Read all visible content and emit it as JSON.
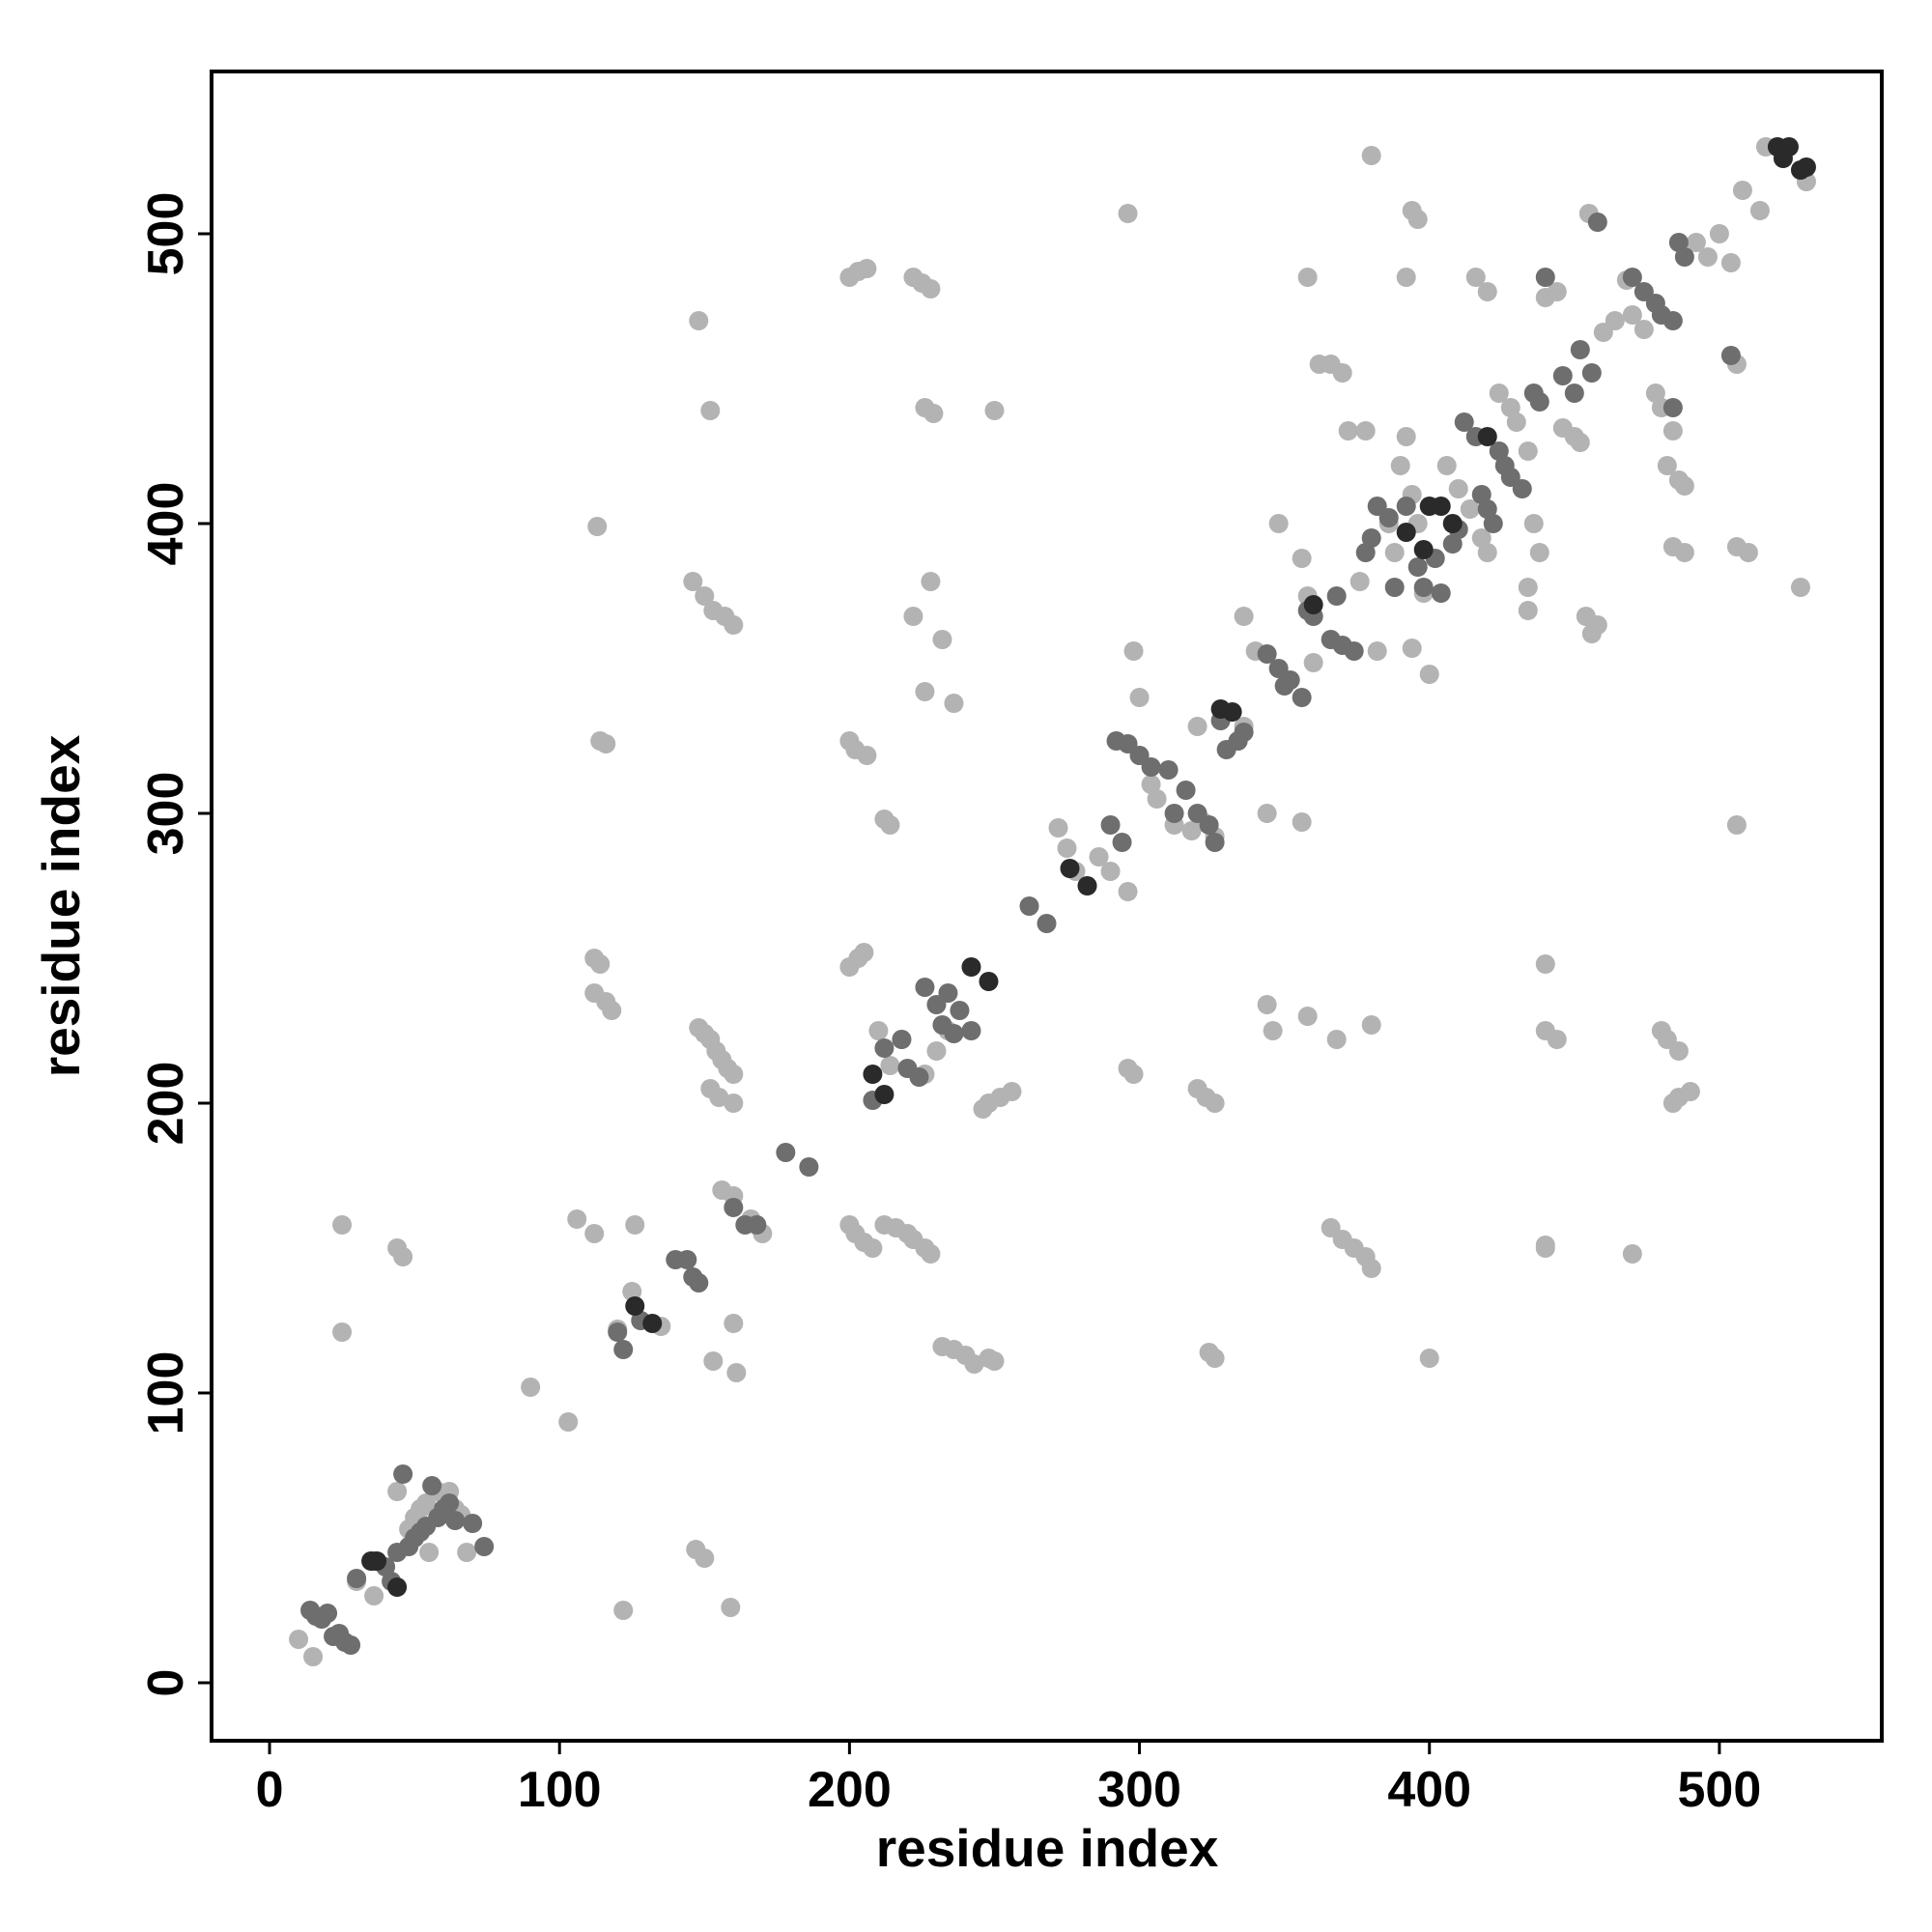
{
  "chart_data": {
    "type": "scatter",
    "xlabel": "residue index",
    "ylabel": "residue index",
    "xlim": [
      -20,
      556
    ],
    "ylim": [
      -20,
      556
    ],
    "xticks": [
      0,
      100,
      200,
      300,
      400,
      500
    ],
    "yticks": [
      0,
      100,
      200,
      300,
      400,
      500
    ],
    "series": [
      {
        "color": "#b3b3b3",
        "x": [
          10,
          15,
          25,
          25,
          44,
          46,
          44,
          30,
          36,
          55,
          68,
          62,
          58,
          64,
          66,
          48,
          50,
          52,
          54,
          90,
          103,
          106,
          112,
          122,
          126,
          125,
          135,
          147,
          150,
          159,
          160,
          153,
          161,
          148,
          152,
          113,
          114,
          116,
          112,
          114,
          112,
          116,
          118,
          146,
          150,
          153,
          157,
          160,
          148,
          150,
          152,
          154,
          156,
          158,
          160,
          152,
          155,
          160,
          156,
          160,
          170,
          166,
          200,
          202,
          205,
          208,
          212,
          216,
          220,
          222,
          226,
          228,
          200,
          203,
          206,
          222,
          225,
          228,
          226,
          229,
          228,
          222,
          232,
          226,
          236,
          250,
          200,
          202,
          206,
          212,
          214,
          200,
          203,
          205,
          210,
          214,
          218,
          226,
          230,
          234,
          232,
          236,
          240,
          243,
          248,
          250,
          248,
          252,
          256,
          246,
          120,
          272,
          275,
          278,
          282,
          286,
          290,
          296,
          298,
          296,
          300,
          304,
          306,
          312,
          318,
          322,
          326,
          298,
          300,
          296,
          320,
          323,
          326,
          324,
          326,
          320,
          334,
          336,
          336,
          340,
          344,
          346,
          344,
          348,
          356,
          358,
          356,
          358,
          360,
          362,
          366,
          370,
          366,
          370,
          374,
          378,
          380,
          368,
          380,
          358,
          372,
          378,
          380,
          382,
          376,
          386,
          390,
          392,
          394,
          396,
          392,
          394,
          396,
          394,
          398,
          400,
          400,
          388,
          386,
          406,
          410,
          414,
          418,
          420,
          416,
          420,
          424,
          428,
          430,
          434,
          436,
          438,
          434,
          434,
          440,
          440,
          444,
          440,
          446,
          450,
          452,
          454,
          456,
          458,
          440,
          444,
          455,
          460,
          464,
          468,
          470,
          474,
          478,
          480,
          484,
          482,
          486,
          488,
          484,
          488,
          480,
          482,
          486,
          484,
          486,
          490,
          492,
          496,
          500,
          504,
          506,
          506,
          506,
          510,
          508,
          514,
          528,
          516,
          530,
          470,
          440
        ],
        "y": [
          15,
          9,
          158,
          121,
          150,
          147,
          66,
          35,
          30,
          45,
          45,
          66,
          66,
          60,
          58,
          53,
          57,
          60,
          62,
          102,
          90,
          160,
          155,
          25,
          158,
          135,
          123,
          46,
          43,
          26,
          124,
          111,
          107,
          470,
          439,
          399,
          325,
          324,
          250,
          248,
          238,
          235,
          232,
          380,
          375,
          370,
          368,
          365,
          226,
          224,
          222,
          218,
          215,
          212,
          210,
          205,
          202,
          200,
          170,
          168,
          155,
          160,
          158,
          155,
          152,
          150,
          158,
          157,
          155,
          153,
          150,
          148,
          485,
          487,
          488,
          485,
          483,
          481,
          440,
          438,
          380,
          368,
          360,
          342,
          338,
          439,
          325,
          322,
          320,
          298,
          296,
          247,
          250,
          252,
          225,
          213,
          222,
          210,
          218,
          225,
          116,
          115,
          113,
          110,
          112,
          111,
          200,
          202,
          204,
          198,
          122,
          295,
          288,
          280,
          275,
          285,
          280,
          273,
          210,
          212,
          320,
          310,
          305,
          296,
          294,
          297,
          292,
          356,
          340,
          507,
          205,
          202,
          200,
          114,
          112,
          330,
          325,
          330,
          368,
          356,
          234,
          225,
          300,
          400,
          297,
          485,
          388,
          375,
          352,
          455,
          455,
          452,
          157,
          153,
          150,
          147,
          143,
          222,
          227,
          230,
          432,
          432,
          527,
          356,
          380,
          400,
          420,
          430,
          410,
          400,
          485,
          508,
          505,
          357,
          376,
          348,
          112,
          390,
          402,
          420,
          412,
          405,
          395,
          390,
          485,
          480,
          445,
          440,
          435,
          425,
          400,
          390,
          378,
          370,
          248,
          225,
          222,
          151,
          433,
          430,
          428,
          368,
          362,
          365,
          478,
          480,
          507,
          466,
          470,
          484,
          472,
          467,
          445,
          440,
          432,
          420,
          415,
          413,
          392,
          390,
          225,
          222,
          218,
          200,
          202,
          204,
          497,
          492,
          500,
          490,
          455,
          296,
          392,
          390,
          515,
          508,
          378,
          530,
          518,
          148,
          150
        ]
      },
      {
        "color": "#6e6e6e",
        "x": [
          14,
          16,
          18,
          20,
          22,
          24,
          26,
          28,
          30,
          40,
          44,
          46,
          48,
          50,
          52,
          54,
          56,
          58,
          60,
          62,
          64,
          70,
          74,
          42,
          36,
          122,
          120,
          128,
          140,
          144,
          146,
          148,
          160,
          164,
          168,
          186,
          178,
          208,
          212,
          218,
          220,
          224,
          226,
          230,
          232,
          236,
          238,
          242,
          234,
          262,
          268,
          290,
          294,
          292,
          296,
          300,
          304,
          310,
          312,
          316,
          320,
          324,
          326,
          328,
          330,
          334,
          336,
          344,
          348,
          350,
          352,
          356,
          358,
          360,
          366,
          370,
          374,
          368,
          378,
          380,
          382,
          386,
          388,
          392,
          396,
          398,
          402,
          404,
          408,
          410,
          412,
          416,
          418,
          420,
          422,
          424,
          426,
          428,
          432,
          436,
          438,
          440,
          446,
          450,
          452,
          456,
          458,
          470,
          474,
          478,
          480,
          484,
          486,
          488,
          484,
          504
        ],
        "y": [
          25,
          23,
          22,
          24,
          16,
          17,
          14,
          13,
          36,
          40,
          45,
          72,
          47,
          50,
          52,
          54,
          68,
          57,
          60,
          62,
          56,
          55,
          47,
          35,
          42,
          115,
          121,
          125,
          146,
          146,
          140,
          138,
          164,
          158,
          158,
          178,
          183,
          201,
          219,
          222,
          212,
          209,
          240,
          234,
          227,
          224,
          232,
          225,
          238,
          268,
          262,
          296,
          290,
          325,
          324,
          320,
          316,
          315,
          300,
          308,
          300,
          296,
          290,
          332,
          322,
          325,
          328,
          355,
          350,
          344,
          346,
          340,
          370,
          368,
          360,
          358,
          356,
          375,
          390,
          395,
          406,
          402,
          378,
          406,
          385,
          378,
          388,
          376,
          393,
          398,
          435,
          430,
          410,
          405,
          400,
          425,
          420,
          416,
          412,
          445,
          442,
          485,
          451,
          445,
          460,
          452,
          504,
          485,
          480,
          476,
          472,
          470,
          497,
          492,
          440,
          458
        ]
      },
      {
        "color": "#2a2a2a",
        "x": [
          35,
          37,
          44,
          126,
          132,
          208,
          212,
          242,
          248,
          276,
          282,
          328,
          332,
          392,
          398,
          400,
          404,
          408,
          520,
          524,
          522,
          528,
          530,
          360,
          420
        ],
        "y": [
          42,
          42,
          33,
          130,
          124,
          210,
          203,
          247,
          242,
          281,
          275,
          336,
          335,
          397,
          391,
          406,
          406,
          400,
          530,
          530,
          526,
          522,
          523,
          372,
          430
        ]
      }
    ]
  }
}
